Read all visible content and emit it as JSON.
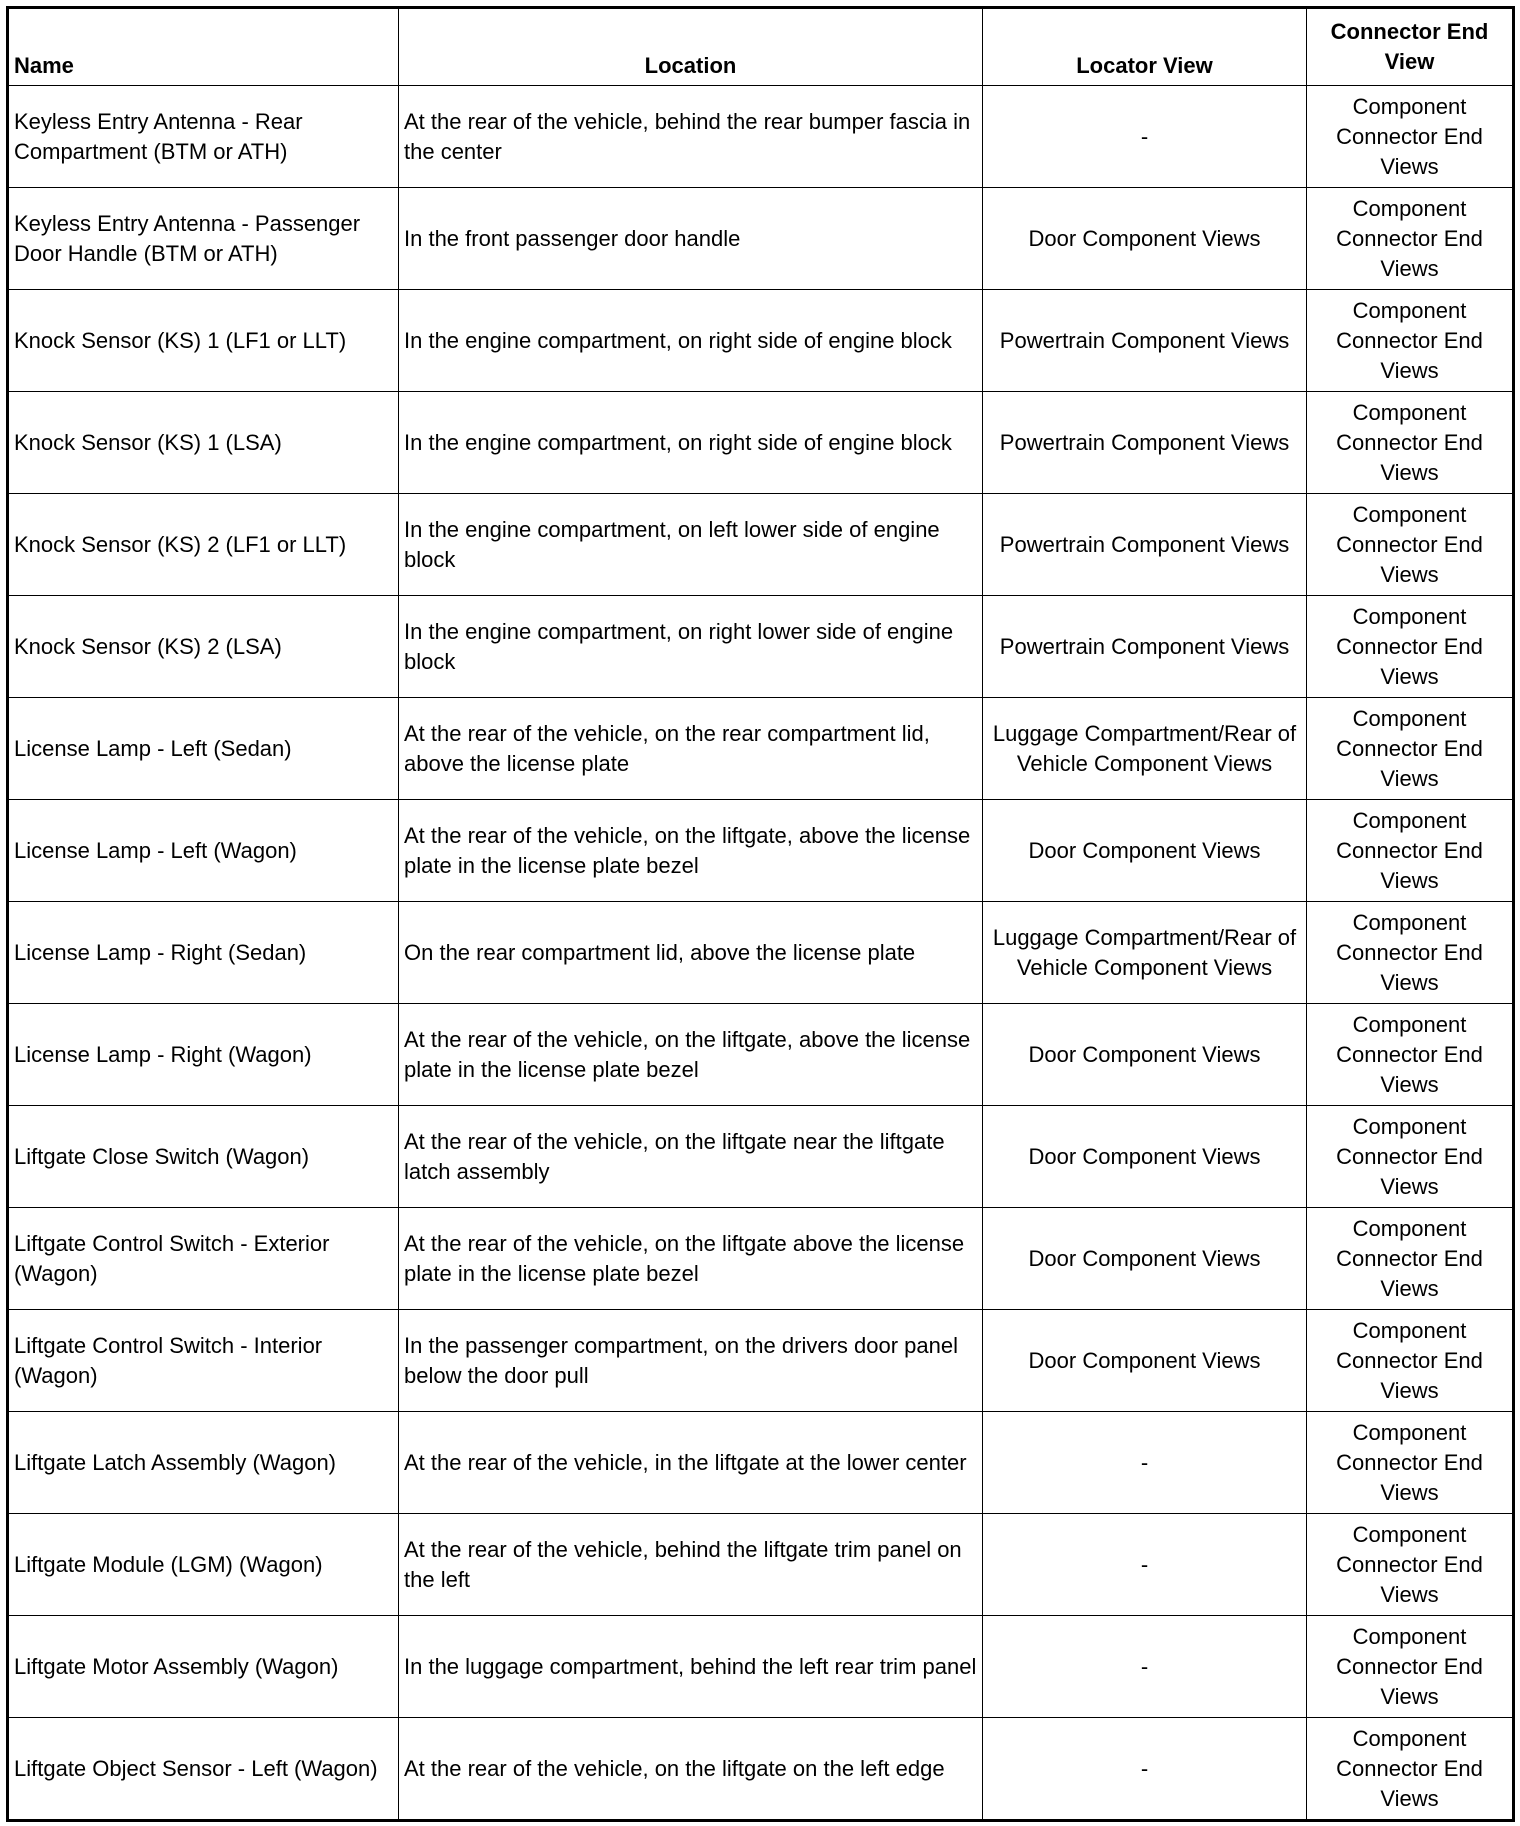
{
  "headers": [
    "Name",
    "Location",
    "Locator View",
    "Connector End View"
  ],
  "rows": [
    [
      "Keyless Entry Antenna - Rear Compartment (BTM or ATH)",
      "At the rear of the vehicle, behind the rear bumper fascia in the center",
      "-",
      "Component Connector End Views"
    ],
    [
      "Keyless Entry Antenna - Passenger Door Handle (BTM or ATH)",
      "In the front passenger door handle",
      "Door Component Views",
      "Component Connector End Views"
    ],
    [
      "Knock Sensor (KS) 1 (LF1 or LLT)",
      "In the engine compartment, on right side of engine block",
      "Powertrain Component Views",
      "Component Connector End Views"
    ],
    [
      "Knock Sensor (KS) 1 (LSA)",
      "In the engine compartment, on right side of engine block",
      "Powertrain Component Views",
      "Component Connector End Views"
    ],
    [
      "Knock Sensor (KS) 2 (LF1 or LLT)",
      "In the engine compartment, on left lower side of engine block",
      "Powertrain Component Views",
      "Component Connector End Views"
    ],
    [
      "Knock Sensor (KS) 2 (LSA)",
      "In the engine compartment, on right lower side of engine block",
      "Powertrain Component Views",
      "Component Connector End Views"
    ],
    [
      "License Lamp - Left (Sedan)",
      "At the rear of the vehicle, on the rear compartment lid, above the license plate",
      "Luggage Compartment/Rear of Vehicle Component Views",
      "Component Connector End Views"
    ],
    [
      "License Lamp - Left (Wagon)",
      "At the rear of the vehicle, on the liftgate, above the license plate in the license plate bezel",
      "Door Component Views",
      "Component Connector End Views"
    ],
    [
      "License Lamp - Right (Sedan)",
      "On the rear compartment lid, above the license plate",
      "Luggage Compartment/Rear of Vehicle Component Views",
      "Component Connector End Views"
    ],
    [
      "License Lamp - Right (Wagon)",
      "At the rear of the vehicle, on the liftgate, above the license plate in the license plate bezel",
      "Door Component Views",
      "Component Connector End Views"
    ],
    [
      "Liftgate Close Switch (Wagon)",
      "At the rear of the vehicle, on the liftgate near the liftgate latch assembly",
      "Door Component Views",
      "Component Connector End Views"
    ],
    [
      "Liftgate Control Switch - Exterior (Wagon)",
      "At the rear of the vehicle, on the liftgate above the license plate in the license plate bezel",
      "Door Component Views",
      "Component Connector End Views"
    ],
    [
      "Liftgate Control Switch - Interior (Wagon)",
      "In the passenger compartment, on the drivers door panel below the door pull",
      "Door Component Views",
      "Component Connector End Views"
    ],
    [
      "Liftgate Latch Assembly (Wagon)",
      "At the rear of the vehicle, in the liftgate at the lower center",
      "-",
      "Component Connector End Views"
    ],
    [
      "Liftgate Module (LGM) (Wagon)",
      "At the rear of the vehicle, behind the liftgate trim panel on the left",
      "-",
      "Component Connector End Views"
    ],
    [
      "Liftgate Motor Assembly (Wagon)",
      "In the luggage compartment, behind the left rear trim panel",
      "-",
      "Component Connector End Views"
    ],
    [
      "Liftgate Object Sensor - Left (Wagon)",
      "At the rear of the vehicle, on the liftgate on the left edge",
      "-",
      "Component Connector End Views"
    ]
  ]
}
